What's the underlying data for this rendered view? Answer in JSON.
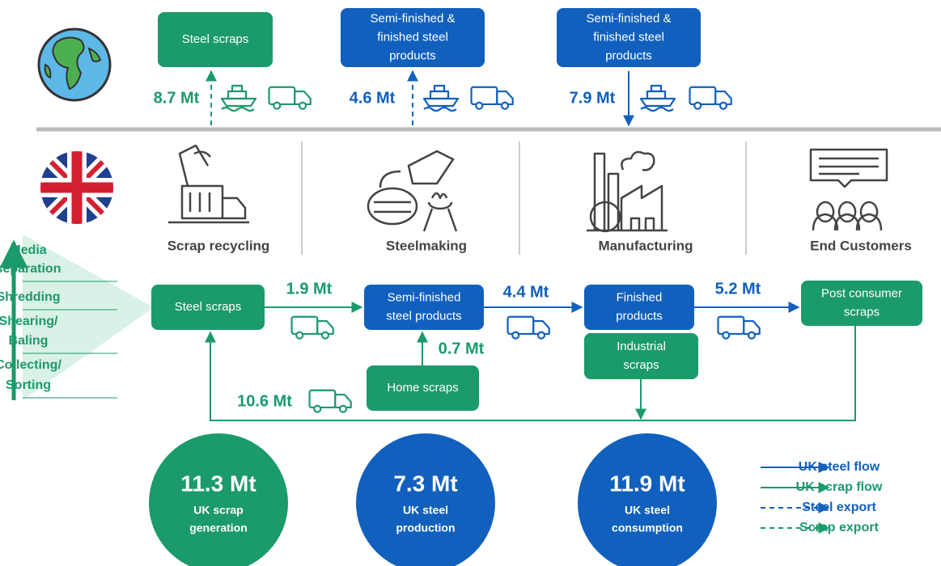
{
  "top_boxes": [
    [
      "Steel scraps"
    ],
    [
      "Semi-finished &",
      "finished  steel",
      "products"
    ],
    [
      "Semi-finished &",
      "finished  steel",
      "products"
    ]
  ],
  "top_flows": [
    "8.7 Mt",
    "4.6 Mt",
    "7.9 Mt"
  ],
  "stages": [
    "Scrap recycling",
    "Steelmaking",
    "Manufacturing",
    "End Customers"
  ],
  "processes": [
    [
      "Media",
      "separation"
    ],
    [
      "Shredding"
    ],
    [
      "Shearing/",
      "Baling"
    ],
    [
      "Collecting/",
      "Sorting"
    ]
  ],
  "uk_boxes": {
    "steel_scraps": [
      "Steel scraps"
    ],
    "semi_finished": [
      "Semi-finished",
      "steel products"
    ],
    "finished": [
      "Finished",
      "products"
    ],
    "post_consumer": [
      "Post consumer",
      "scraps"
    ],
    "home_scraps": [
      "Home scraps"
    ],
    "industrial_scraps": [
      "Industrial",
      "scraps"
    ]
  },
  "uk_flows": {
    "scraps_to_steelmaking": "1.9 Mt",
    "steel_to_manufacturing": "4.4 Mt",
    "products_to_customers": "5.2 Mt",
    "home_scraps": "0.7 Mt",
    "scrap_return": "10.6 Mt"
  },
  "totals": [
    {
      "value": "11.3 Mt",
      "label": [
        "UK scrap",
        "generation"
      ]
    },
    {
      "value": "7.3 Mt",
      "label": [
        "UK steel",
        "production"
      ]
    },
    {
      "value": "11.9 Mt",
      "label": [
        "UK steel",
        "consumption"
      ]
    }
  ],
  "legend": [
    "UK steel flow",
    "UK scrap flow",
    "Steel export",
    "Scrap export"
  ]
}
